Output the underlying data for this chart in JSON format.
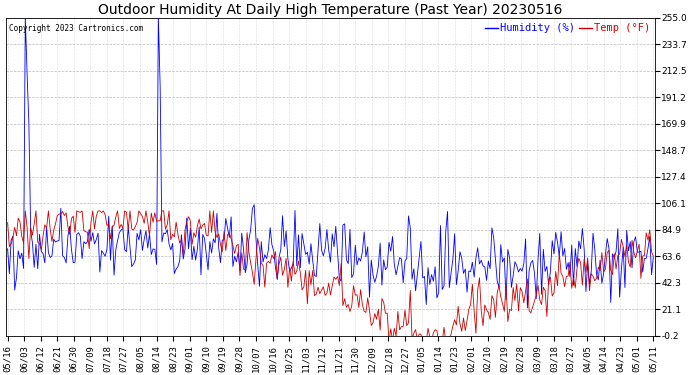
{
  "title": "Outdoor Humidity At Daily High Temperature (Past Year) 20230516",
  "copyright": "Copyright 2023 Cartronics.com",
  "legend_humidity": "Humidity (%)",
  "legend_temp": "Temp (°F)",
  "humidity_color": "#0000ff",
  "temp_color": "#cc0000",
  "yticks": [
    255.0,
    233.7,
    212.5,
    191.2,
    169.9,
    148.7,
    127.4,
    106.1,
    84.9,
    63.6,
    42.3,
    21.1,
    -0.2
  ],
  "ylim": [
    -0.2,
    255.0
  ],
  "xlabel_dates": [
    "05/16",
    "06/03",
    "06/12",
    "06/21",
    "06/30",
    "07/09",
    "07/18",
    "07/27",
    "08/05",
    "08/14",
    "08/23",
    "09/01",
    "09/10",
    "09/19",
    "09/28",
    "10/07",
    "10/16",
    "10/25",
    "11/03",
    "11/12",
    "11/21",
    "11/30",
    "12/09",
    "12/18",
    "12/27",
    "01/05",
    "01/14",
    "01/23",
    "02/01",
    "02/10",
    "02/19",
    "02/28",
    "03/09",
    "03/18",
    "03/27",
    "04/05",
    "04/14",
    "04/23",
    "05/01",
    "05/11"
  ],
  "background_color": "#ffffff",
  "grid_color": "#bbbbbb",
  "title_fontsize": 10,
  "tick_fontsize": 6.5,
  "legend_fontsize": 7.5,
  "n_days": 365,
  "humidity_seed": 10,
  "temp_seed": 20
}
